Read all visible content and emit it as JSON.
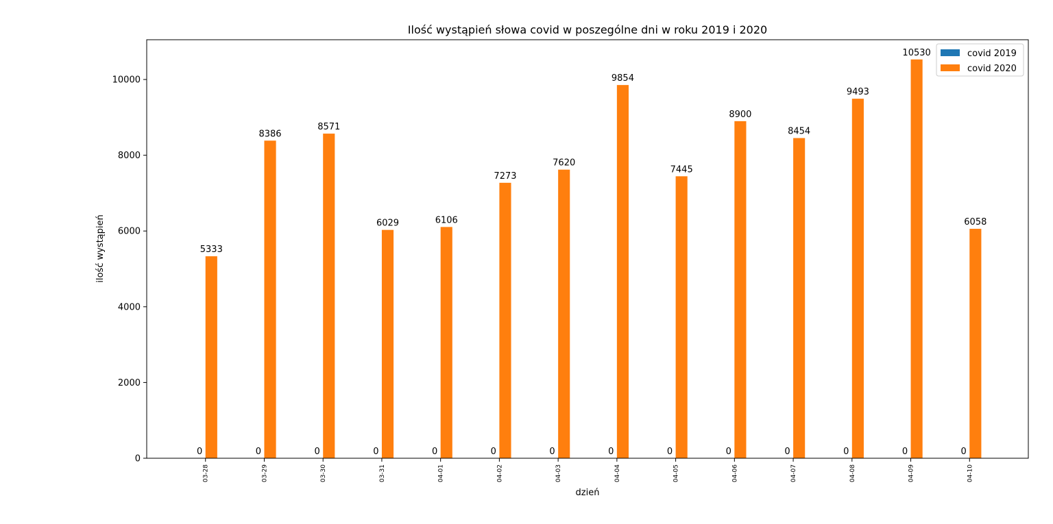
{
  "chart_data": {
    "type": "bar",
    "title": "Ilość wystąpień słowa covid w poszególne dni w roku 2019 i 2020",
    "xlabel": "dzień",
    "ylabel": "ilość wystąpień",
    "ylim": [
      0,
      11050
    ],
    "yticks": [
      0,
      2000,
      4000,
      6000,
      8000,
      10000
    ],
    "grid": false,
    "legend_position": "top-right",
    "categories": [
      "03-28",
      "03-29",
      "03-30",
      "03-31",
      "04-01",
      "04-02",
      "04-03",
      "04-04",
      "04-05",
      "04-06",
      "04-07",
      "04-08",
      "04-09",
      "04-10"
    ],
    "series": [
      {
        "name": "covid 2019",
        "color": "#1f77b4",
        "values": [
          0,
          0,
          0,
          0,
          0,
          0,
          0,
          0,
          0,
          0,
          0,
          0,
          0,
          0
        ]
      },
      {
        "name": "covid 2020",
        "color": "#ff7f0e",
        "values": [
          5333,
          8386,
          8571,
          6029,
          6106,
          7273,
          7620,
          9854,
          7445,
          8900,
          8454,
          9493,
          10530,
          6058
        ]
      }
    ]
  }
}
